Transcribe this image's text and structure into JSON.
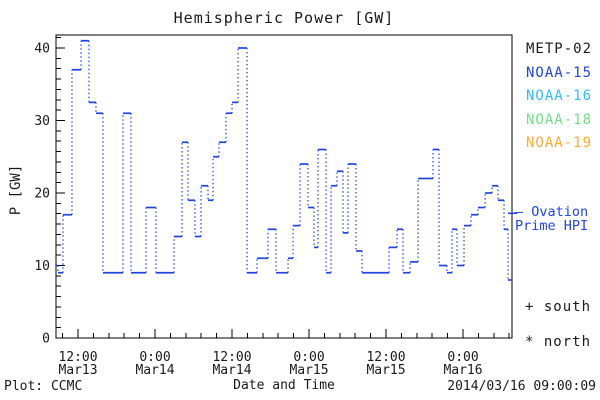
{
  "title": "Hemispheric Power [GW]",
  "axes": {
    "xlabel": "Date and Time",
    "ylabel": "P [GW]"
  },
  "footer": {
    "left": "Plot: CCMC",
    "right": "2014/03/16 09:00:09"
  },
  "legend": [
    {
      "label": "METP-02",
      "color": "#1a1a1a"
    },
    {
      "label": "NOAA-15",
      "color": "#2244dd"
    },
    {
      "label": "NOAA-16",
      "color": "#33bbff"
    },
    {
      "label": "NOAA-18",
      "color": "#77dd88"
    },
    {
      "label": "NOAA-19",
      "color": "#ffaa33"
    }
  ],
  "ovation": {
    "line1": "– Ovation",
    "line2": "Prime HPI",
    "color": "#2244dd",
    "tick_value_gw": 17.2
  },
  "markers": [
    {
      "symbol": "+",
      "label": "south"
    },
    {
      "symbol": "*",
      "label": "north"
    }
  ],
  "chart_data": {
    "type": "line",
    "style": "step-segments-with-dotted-transitions",
    "title": "Hemispheric Power [GW]",
    "xlabel": "Date and Time",
    "ylabel": "P [GW]",
    "grid": false,
    "legend_position": "right-outside",
    "ylim": [
      0,
      41.8
    ],
    "xlim": [
      0,
      71.06
    ],
    "x_unit": "hours across plot (span ≈ 3 days, Mar 13 – Mar 16 2014)",
    "y_ticks": [
      0,
      10,
      20,
      30,
      40
    ],
    "x_minor_interval_hours": 2.4,
    "x_major_ticks": [
      {
        "t": 3.43,
        "time": "12:00",
        "date": "Mar13"
      },
      {
        "t": 15.43,
        "time": "0:00",
        "date": "Mar14"
      },
      {
        "t": 27.43,
        "time": "12:00",
        "date": "Mar14"
      },
      {
        "t": 39.43,
        "time": "0:00",
        "date": "Mar15"
      },
      {
        "t": 51.43,
        "time": "12:00",
        "date": "Mar15"
      },
      {
        "t": 63.43,
        "time": "0:00",
        "date": "Mar16"
      }
    ],
    "series": [
      {
        "name": "Hemispheric Power",
        "color": "#2244dd",
        "segments": [
          [
            0,
            0.31,
            10
          ],
          [
            0.31,
            1.09,
            9
          ],
          [
            1.09,
            2.49,
            17
          ],
          [
            2.49,
            3.9,
            37
          ],
          [
            3.9,
            5.14,
            41
          ],
          [
            5.14,
            6.23,
            32.5
          ],
          [
            6.23,
            7.32,
            31
          ],
          [
            7.32,
            10.44,
            9
          ],
          [
            10.44,
            11.69,
            31
          ],
          [
            11.69,
            14.03,
            9
          ],
          [
            14.03,
            15.58,
            18
          ],
          [
            15.58,
            18.39,
            9
          ],
          [
            18.39,
            19.64,
            14
          ],
          [
            19.64,
            20.57,
            27
          ],
          [
            20.57,
            21.66,
            19
          ],
          [
            21.66,
            22.6,
            14
          ],
          [
            22.6,
            23.69,
            21
          ],
          [
            23.69,
            24.47,
            19
          ],
          [
            24.47,
            25.4,
            25
          ],
          [
            25.4,
            26.49,
            27
          ],
          [
            26.49,
            27.43,
            31
          ],
          [
            27.43,
            28.36,
            32.5
          ],
          [
            28.36,
            29.77,
            40
          ],
          [
            29.77,
            31.32,
            9
          ],
          [
            31.32,
            33.04,
            11
          ],
          [
            33.04,
            34.29,
            15
          ],
          [
            34.29,
            36.16,
            9
          ],
          [
            36.16,
            36.94,
            11
          ],
          [
            36.94,
            38.03,
            15.5
          ],
          [
            38.03,
            39.27,
            24
          ],
          [
            39.27,
            40.21,
            18
          ],
          [
            40.21,
            40.83,
            12.5
          ],
          [
            40.83,
            42.08,
            26
          ],
          [
            42.08,
            42.86,
            9
          ],
          [
            42.86,
            43.79,
            21
          ],
          [
            43.79,
            44.73,
            23
          ],
          [
            44.73,
            45.51,
            14.5
          ],
          [
            45.51,
            46.75,
            24
          ],
          [
            46.75,
            47.69,
            12
          ],
          [
            47.69,
            51.9,
            9
          ],
          [
            51.9,
            53.14,
            12.5
          ],
          [
            53.14,
            54.08,
            15
          ],
          [
            54.08,
            55.17,
            9
          ],
          [
            55.17,
            56.42,
            10.5
          ],
          [
            56.42,
            58.75,
            22
          ],
          [
            58.75,
            59.69,
            26
          ],
          [
            59.69,
            60.93,
            10
          ],
          [
            60.93,
            61.71,
            9
          ],
          [
            61.71,
            62.49,
            15
          ],
          [
            62.49,
            63.58,
            10
          ],
          [
            63.58,
            64.67,
            15.5
          ],
          [
            64.67,
            65.76,
            17
          ],
          [
            65.76,
            66.86,
            18
          ],
          [
            66.86,
            67.95,
            20
          ],
          [
            67.95,
            68.88,
            21
          ],
          [
            68.88,
            69.82,
            19
          ],
          [
            69.82,
            70.44,
            15
          ],
          [
            70.44,
            71.06,
            8
          ]
        ]
      }
    ]
  }
}
